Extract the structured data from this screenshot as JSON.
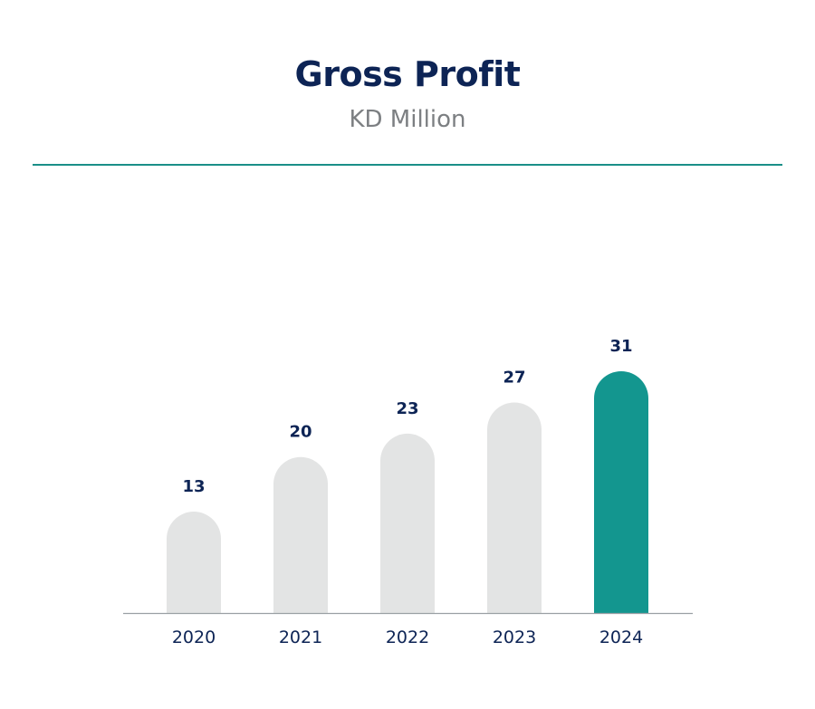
{
  "header": {
    "title": "Gross Profit",
    "subtitle": "KD Million"
  },
  "colors": {
    "title": "#0d2455",
    "subtitle": "#7c7f82",
    "divider": "#1a8f88",
    "bar_default": "#e3e4e4",
    "bar_highlight": "#13968f",
    "axis": "#9aa0a4"
  },
  "chart_data": {
    "type": "bar",
    "title": "Gross Profit",
    "subtitle": "KD Million",
    "categories": [
      "2020",
      "2021",
      "2022",
      "2023",
      "2024"
    ],
    "values": [
      13,
      20,
      23,
      27,
      31
    ],
    "data_labels": [
      "13",
      "20",
      "23",
      "27",
      "31"
    ],
    "highlight_index": 4,
    "ylim": [
      0,
      31
    ],
    "grid": false,
    "xlabel": "",
    "ylabel": ""
  }
}
